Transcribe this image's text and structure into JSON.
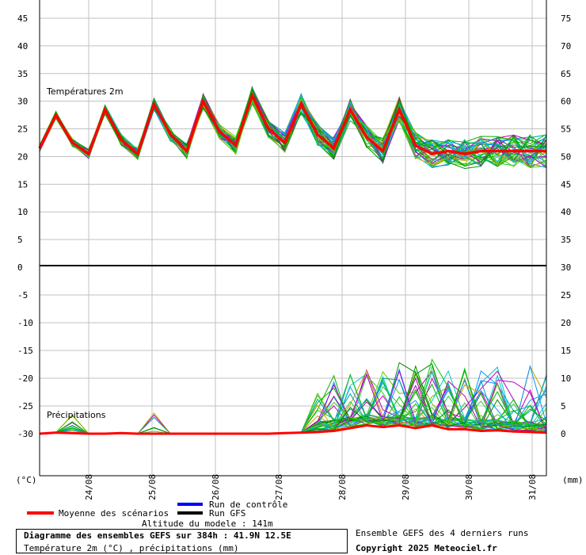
{
  "chart_data": [
    {
      "type": "line",
      "title": "Températures 2m",
      "ylabel_left": "(°C)",
      "left_ticks": [
        45,
        40,
        35,
        30,
        25,
        20,
        15,
        10,
        5,
        0
      ],
      "right_ticks": [
        75,
        70,
        65,
        60,
        55,
        50,
        45,
        40,
        35,
        30
      ],
      "ylim": [
        0,
        48
      ],
      "x": [
        "23/08 12h",
        "23/08 18h",
        "24/08 00h",
        "24/08 06h",
        "24/08 12h",
        "24/08 18h",
        "25/08 00h",
        "25/08 06h",
        "25/08 12h",
        "25/08 18h",
        "26/08 00h",
        "26/08 06h",
        "26/08 12h",
        "26/08 18h",
        "27/08 00h",
        "27/08 06h",
        "27/08 12h",
        "27/08 18h",
        "28/08 00h",
        "28/08 06h",
        "28/08 12h",
        "28/08 18h",
        "29/08 00h",
        "29/08 06h",
        "29/08 12h",
        "29/08 18h",
        "30/08 00h",
        "30/08 06h",
        "30/08 12h",
        "30/08 18h",
        "31/08 00h",
        "31/08 06h"
      ],
      "series": [
        {
          "name": "Moyenne des scénarios",
          "color": "#ff0000",
          "values": [
            21.5,
            27.5,
            22.5,
            20.5,
            28.5,
            23,
            20.5,
            29.5,
            24,
            21,
            30,
            24.5,
            22,
            31,
            25,
            22.5,
            29.5,
            24,
            21.5,
            28.5,
            23.5,
            21,
            28.5,
            22,
            20.5,
            21,
            20.5,
            21,
            21,
            21,
            21,
            21
          ]
        }
      ]
    },
    {
      "type": "line",
      "title": "Précipitations",
      "ylabel_right": "(mm)",
      "left_ticks": [
        0,
        -5,
        -10,
        -15,
        -20,
        -25,
        -30
      ],
      "right_ticks": [
        30,
        25,
        20,
        15,
        10,
        5,
        0
      ],
      "ylim": [
        0,
        29
      ],
      "x": [
        "23/08 12h",
        "23/08 18h",
        "24/08 00h",
        "24/08 06h",
        "24/08 12h",
        "24/08 18h",
        "25/08 00h",
        "25/08 06h",
        "25/08 12h",
        "25/08 18h",
        "26/08 00h",
        "26/08 06h",
        "26/08 12h",
        "26/08 18h",
        "27/08 00h",
        "27/08 06h",
        "27/08 12h",
        "27/08 18h",
        "28/08 00h",
        "28/08 06h",
        "28/08 12h",
        "28/08 18h",
        "29/08 00h",
        "29/08 06h",
        "29/08 12h",
        "29/08 18h",
        "30/08 00h",
        "30/08 06h",
        "30/08 12h",
        "30/08 18h",
        "31/08 00h",
        "31/08 06h"
      ],
      "series": [
        {
          "name": "Moyenne des scénarios",
          "color": "#ff0000",
          "values": [
            0,
            0.2,
            0.1,
            0,
            0,
            0.1,
            0,
            0,
            0,
            0,
            0,
            0,
            0,
            0,
            0,
            0.1,
            0.2,
            0.3,
            0.5,
            1,
            1.5,
            1.2,
            1.5,
            1,
            1.5,
            0.8,
            0.8,
            0.5,
            0.6,
            0.4,
            0.3,
            0.2
          ]
        }
      ]
    }
  ],
  "x_ticks": [
    "24/08",
    "25/08",
    "26/08",
    "27/08",
    "28/08",
    "29/08",
    "30/08",
    "31/08"
  ],
  "legend": {
    "mean": "Moyenne des scénarios",
    "control": "Run de contrôle",
    "gfs": "Run GFS",
    "mean_color": "#ff0000",
    "control_color": "#0000ff",
    "gfs_color": "#000000"
  },
  "model_altitude": "Altitude du modele : 141m",
  "info_title": "Diagramme des ensembles GEFS sur 384h : 41.9N 12.5E",
  "info_subtitle": "Température 2m (°C) , précipitations (mm)",
  "ensemble_note": "Ensemble GEFS des 4 derniers runs",
  "copyright": "Copyright 2025 Meteociel.fr",
  "ensemble_colors": [
    "#00c800",
    "#00b400",
    "#32cd32",
    "#008c00",
    "#0096ff",
    "#00c8c8",
    "#1e90ff",
    "#c800c8",
    "#b400b4",
    "#c8a000",
    "#64c800",
    "#00a0a0"
  ]
}
